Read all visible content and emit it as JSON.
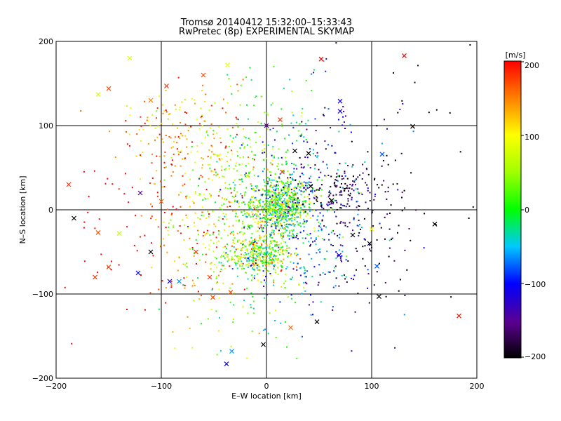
{
  "chart_data": {
    "type": "scatter",
    "title": "Tromsø 20140412 15:32:00–15:33:43",
    "subtitle": "RwPretec (8p) EXPERIMENTAL SKYMAP",
    "xlabel": "E–W location [km]",
    "ylabel": "N–S location [km]",
    "xlim": [
      -200,
      200
    ],
    "ylim": [
      -200,
      200
    ],
    "x_ticks": [
      "−200",
      "−100",
      "0",
      "100",
      "200"
    ],
    "y_ticks": [
      "−200",
      "−100",
      "0",
      "100",
      "200"
    ],
    "grid": true,
    "colorbar": {
      "label": "[m/s]",
      "range": [
        -200,
        200
      ],
      "ticks": [
        "200",
        "100",
        "0",
        "−100",
        "−200"
      ],
      "colormap": "rainbow (black–purple–blue–cyan–green–yellow–red)"
    },
    "marker_types": [
      "dot",
      "x"
    ],
    "series_x_markers": [
      {
        "x": -188,
        "y": 30,
        "v": 180
      },
      {
        "x": -183,
        "y": -10,
        "v": -200
      },
      {
        "x": -160,
        "y": 137,
        "v": 80
      },
      {
        "x": -150,
        "y": 144,
        "v": 170
      },
      {
        "x": -130,
        "y": 180,
        "v": 80
      },
      {
        "x": -110,
        "y": 130,
        "v": 150
      },
      {
        "x": -95,
        "y": 147,
        "v": 180
      },
      {
        "x": -60,
        "y": 160,
        "v": 170
      },
      {
        "x": -37,
        "y": 172,
        "v": 90
      },
      {
        "x": 52,
        "y": 179,
        "v": 200
      },
      {
        "x": 131,
        "y": 183,
        "v": 200
      },
      {
        "x": 70,
        "y": 129,
        "v": -110
      },
      {
        "x": 70,
        "y": 117,
        "v": -110
      },
      {
        "x": 139,
        "y": 99,
        "v": -200
      },
      {
        "x": 110,
        "y": 66,
        "v": -80
      },
      {
        "x": 40,
        "y": 67,
        "v": -200
      },
      {
        "x": 27,
        "y": 70,
        "v": -200
      },
      {
        "x": 42,
        "y": 28,
        "v": -200
      },
      {
        "x": 62,
        "y": 11,
        "v": -200
      },
      {
        "x": -120,
        "y": 20,
        "v": -150
      },
      {
        "x": -100,
        "y": 10,
        "v": 160
      },
      {
        "x": -160,
        "y": -27,
        "v": 170
      },
      {
        "x": -150,
        "y": -68,
        "v": 170
      },
      {
        "x": -163,
        "y": -80,
        "v": 180
      },
      {
        "x": -140,
        "y": -28,
        "v": 70
      },
      {
        "x": -122,
        "y": -75,
        "v": -110
      },
      {
        "x": -110,
        "y": -50,
        "v": -200
      },
      {
        "x": -92,
        "y": -85,
        "v": -110
      },
      {
        "x": -83,
        "y": -85,
        "v": -60
      },
      {
        "x": -67,
        "y": -50,
        "v": 180
      },
      {
        "x": -54,
        "y": -80,
        "v": 180
      },
      {
        "x": -51,
        "y": -104,
        "v": 170
      },
      {
        "x": -34,
        "y": -98,
        "v": 170
      },
      {
        "x": -38,
        "y": -183,
        "v": -110
      },
      {
        "x": -33,
        "y": -168,
        "v": -60
      },
      {
        "x": -3,
        "y": -160,
        "v": -200
      },
      {
        "x": 23,
        "y": -140,
        "v": 160
      },
      {
        "x": 48,
        "y": -133,
        "v": -200
      },
      {
        "x": 69,
        "y": -54,
        "v": -110
      },
      {
        "x": 82,
        "y": -30,
        "v": -200
      },
      {
        "x": 98,
        "y": -40,
        "v": -200
      },
      {
        "x": 105,
        "y": -67,
        "v": -80
      },
      {
        "x": 107,
        "y": -103,
        "v": -200
      },
      {
        "x": 160,
        "y": -17,
        "v": -200
      },
      {
        "x": 183,
        "y": -126,
        "v": 190
      },
      {
        "x": 100,
        "y": -23,
        "v": 100
      },
      {
        "x": 15,
        "y": 45,
        "v": 180
      },
      {
        "x": -18,
        "y": 40,
        "v": 90
      },
      {
        "x": 0,
        "y": 100,
        "v": -150
      },
      {
        "x": 13,
        "y": 107,
        "v": 180
      }
    ]
  }
}
